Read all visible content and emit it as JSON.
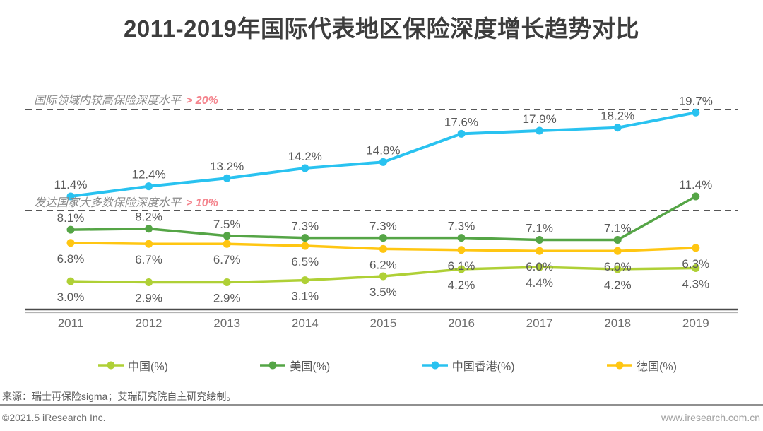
{
  "title": "2011-2019年国际代表地区保险深度增长趋势对比",
  "chart_data": {
    "type": "line",
    "title": "2011-2019年国际代表地区保险深度增长趋势对比",
    "categories": [
      "2011",
      "2012",
      "2013",
      "2014",
      "2015",
      "2016",
      "2017",
      "2018",
      "2019"
    ],
    "series": [
      {
        "name": "中国(%)",
        "color": "#AFD036",
        "values": [
          3.0,
          2.9,
          2.9,
          3.1,
          3.5,
          4.2,
          4.4,
          4.2,
          4.3
        ],
        "label_position": "below"
      },
      {
        "name": "美国(%)",
        "color": "#55A546",
        "values": [
          8.1,
          8.2,
          7.5,
          7.3,
          7.3,
          7.3,
          7.1,
          7.1,
          11.4
        ],
        "label_position": "above"
      },
      {
        "name": "中国香港(%)",
        "color": "#29C2F0",
        "values": [
          11.4,
          12.4,
          13.2,
          14.2,
          14.8,
          17.6,
          17.9,
          18.2,
          19.7
        ],
        "label_position": "above"
      },
      {
        "name": "德国(%)",
        "color": "#FFC612",
        "values": [
          6.8,
          6.7,
          6.7,
          6.5,
          6.2,
          6.1,
          6.0,
          6.0,
          6.3
        ],
        "label_position": "below"
      }
    ],
    "thresholds": [
      {
        "value": 20,
        "label": "国际领域内较高保险深度水平",
        "highlight": "> 20%"
      },
      {
        "value": 10,
        "label": "发达国家大多数保险深度水平",
        "highlight": "> 10%"
      }
    ],
    "value_suffix": "%",
    "ylim": [
      0,
      22
    ],
    "grid": false,
    "legend_position": "bottom"
  },
  "colors": {
    "highlight_pink": "#F4838C",
    "threshold_dash": "#565656",
    "axis_dark": "#4a4a4a",
    "axis_light": "#b3b3b3"
  },
  "footer": {
    "source": "来源：瑞士再保险sigma；艾瑞研究院自主研究绘制。",
    "copyright": "©2021.5 iResearch Inc.",
    "website": "www.iresearch.com.cn"
  }
}
